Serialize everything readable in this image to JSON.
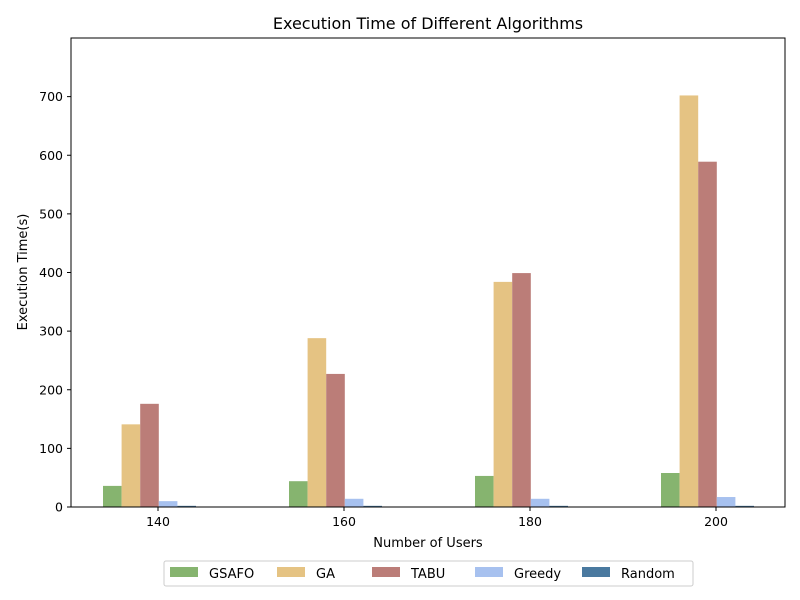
{
  "chart_data": {
    "type": "bar",
    "title": "Execution Time of Different Algorithms",
    "xlabel": "Number of Users",
    "ylabel": "Execution Time(s)",
    "categories": [
      "140",
      "160",
      "180",
      "200"
    ],
    "ylim": [
      0,
      800
    ],
    "yticks": [
      0,
      100,
      200,
      300,
      400,
      500,
      600,
      700
    ],
    "grid": false,
    "legend_position": "bottom-center",
    "series": [
      {
        "name": "GSAFO",
        "color": "#86b46f",
        "values": [
          36,
          44,
          53,
          58
        ]
      },
      {
        "name": "GA",
        "color": "#e5c383",
        "values": [
          141,
          288,
          384,
          702
        ]
      },
      {
        "name": "TABU",
        "color": "#bb7d78",
        "values": [
          176,
          227,
          399,
          589
        ]
      },
      {
        "name": "Greedy",
        "color": "#a7c1ef",
        "values": [
          10,
          14,
          14,
          17
        ]
      },
      {
        "name": "Random",
        "color": "#4a799f",
        "values": [
          2,
          2,
          2,
          2
        ]
      }
    ]
  }
}
